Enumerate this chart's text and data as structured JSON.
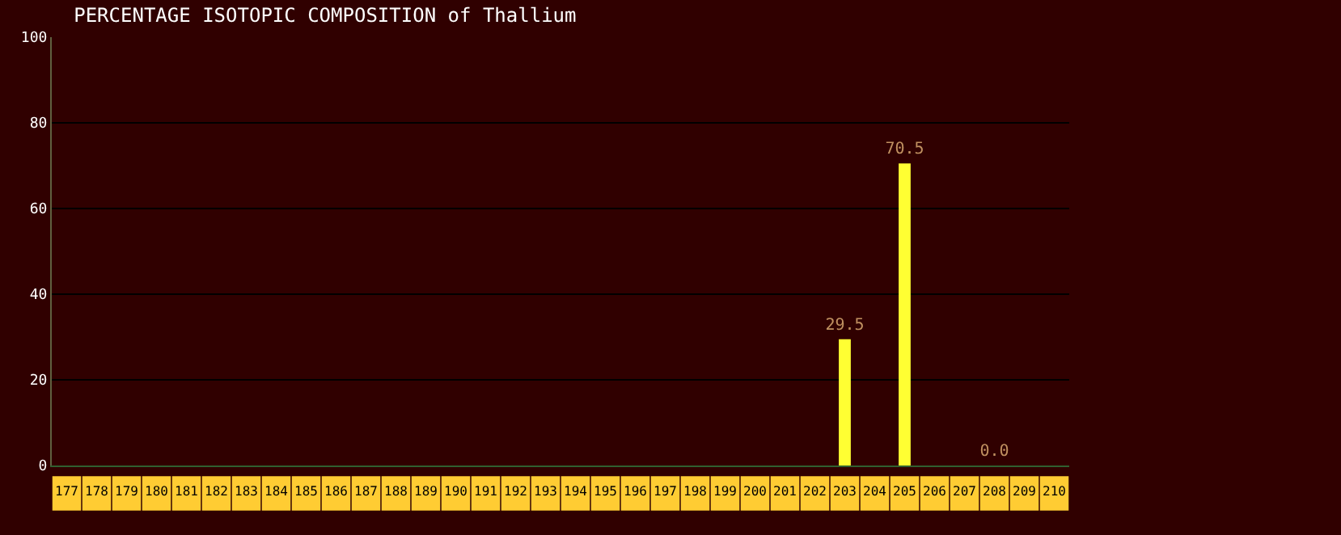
{
  "chart_data": {
    "type": "bar",
    "title": "PERCENTAGE ISOTOPIC COMPOSITION of Thallium",
    "categories": [
      "177",
      "178",
      "179",
      "180",
      "181",
      "182",
      "183",
      "184",
      "185",
      "186",
      "187",
      "188",
      "189",
      "190",
      "191",
      "192",
      "193",
      "194",
      "195",
      "196",
      "197",
      "198",
      "199",
      "200",
      "201",
      "202",
      "203",
      "204",
      "205",
      "206",
      "207",
      "208",
      "209",
      "210"
    ],
    "values": [
      null,
      null,
      null,
      null,
      null,
      null,
      null,
      null,
      null,
      null,
      null,
      null,
      null,
      null,
      null,
      null,
      null,
      null,
      null,
      null,
      null,
      null,
      null,
      null,
      null,
      null,
      29.5,
      null,
      70.5,
      null,
      null,
      0.0,
      null,
      null
    ],
    "value_labels": [
      null,
      null,
      null,
      null,
      null,
      null,
      null,
      null,
      null,
      null,
      null,
      null,
      null,
      null,
      null,
      null,
      null,
      null,
      null,
      null,
      null,
      null,
      null,
      null,
      null,
      null,
      "29.5",
      null,
      "70.5",
      null,
      null,
      "0.0",
      null,
      null
    ],
    "color": "#ffff33",
    "ylim": [
      0,
      100
    ],
    "yticks": [
      0,
      20,
      40,
      60,
      80,
      100
    ],
    "grid": "y"
  }
}
